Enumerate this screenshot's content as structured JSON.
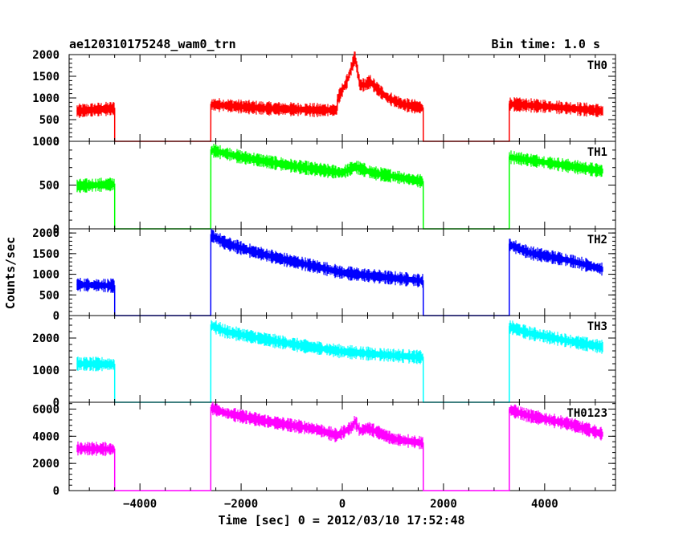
{
  "chart_data": {
    "type": "line",
    "title": "ae120310175248_wam0_trn",
    "bin_time_label": "Bin time: 1.0 s",
    "xlabel": "Time [sec] 0 = 2012/03/10 17:52:48",
    "ylabel": "Counts/sec",
    "xlim": [
      -5400,
      5400
    ],
    "x_ticks": [
      -4000,
      -2000,
      0,
      2000,
      4000
    ],
    "x_tick_labels": [
      "−4000",
      "−2000",
      "0",
      "2000",
      "4000"
    ],
    "panels": [
      {
        "name": "TH0",
        "color": "#ff0000",
        "ylim": [
          0,
          2000
        ],
        "y_ticks": [
          0,
          500,
          1000,
          1500,
          2000
        ],
        "y_tick_labels": [
          "0",
          "500",
          "1000",
          "1500",
          "2000"
        ],
        "x": [
          -5250,
          -4500,
          -4499,
          -2600,
          -2599,
          -1500,
          -500,
          -100,
          -99,
          100,
          250,
          350,
          450,
          550,
          700,
          900,
          1200,
          1600,
          1601,
          3300,
          3301,
          4200,
          5150
        ],
        "values": [
          700,
          760,
          0,
          0,
          850,
          760,
          720,
          720,
          960,
          1400,
          1950,
          1300,
          1300,
          1380,
          1200,
          1000,
          850,
          770,
          0,
          0,
          860,
          790,
          700
        ]
      },
      {
        "name": "TH1",
        "color": "#00ff00",
        "ylim": [
          0,
          1000
        ],
        "y_ticks": [
          0,
          500,
          1000
        ],
        "y_tick_labels": [
          "0",
          "500",
          "1000"
        ],
        "x": [
          -5250,
          -4500,
          -4499,
          -2600,
          -2599,
          -2000,
          -1000,
          0,
          250,
          600,
          1000,
          1600,
          1601,
          3300,
          3301,
          4000,
          5150
        ],
        "values": [
          490,
          510,
          0,
          0,
          900,
          820,
          720,
          640,
          710,
          640,
          600,
          540,
          0,
          0,
          820,
          760,
          660
        ]
      },
      {
        "name": "TH2",
        "color": "#0000ff",
        "ylim": [
          0,
          2100
        ],
        "y_ticks": [
          0,
          500,
          1000,
          1500,
          2000
        ],
        "y_tick_labels": [
          "0",
          "500",
          "1000",
          "1500",
          "2000"
        ],
        "x": [
          -5250,
          -4500,
          -4499,
          -2600,
          -2599,
          -2300,
          -1800,
          -1200,
          -500,
          0,
          500,
          1000,
          1600,
          1601,
          3300,
          3301,
          3700,
          4500,
          5150
        ],
        "values": [
          750,
          720,
          0,
          0,
          1950,
          1750,
          1560,
          1370,
          1180,
          1040,
          970,
          910,
          840,
          0,
          0,
          1720,
          1520,
          1330,
          1120
        ]
      },
      {
        "name": "TH3",
        "color": "#00ffff",
        "ylim": [
          0,
          2700
        ],
        "y_ticks": [
          0,
          1000,
          2000
        ],
        "y_tick_labels": [
          "0",
          "1000",
          "2000"
        ],
        "x": [
          -5250,
          -4500,
          -4499,
          -2600,
          -2599,
          -2300,
          -1600,
          -800,
          0,
          800,
          1600,
          1601,
          3300,
          3301,
          3700,
          4500,
          5150
        ],
        "values": [
          1200,
          1180,
          0,
          0,
          2400,
          2200,
          1980,
          1760,
          1580,
          1480,
          1400,
          0,
          0,
          2350,
          2150,
          1900,
          1720
        ]
      },
      {
        "name": "TH0123",
        "color": "#ff00ff",
        "ylim": [
          0,
          6500
        ],
        "y_ticks": [
          0,
          2000,
          4000,
          6000
        ],
        "y_tick_labels": [
          "0",
          "2000",
          "4000",
          "6000"
        ],
        "x": [
          -5250,
          -4500,
          -4499,
          -2600,
          -2599,
          -2300,
          -1500,
          -500,
          -100,
          200,
          250,
          350,
          500,
          700,
          1000,
          1600,
          1601,
          3300,
          3301,
          3700,
          4500,
          5150
        ],
        "values": [
          3100,
          3050,
          0,
          0,
          6100,
          5700,
          5100,
          4500,
          4050,
          4700,
          5100,
          4400,
          4600,
          4300,
          3800,
          3500,
          0,
          0,
          5950,
          5500,
          4900,
          4150
        ]
      }
    ]
  }
}
